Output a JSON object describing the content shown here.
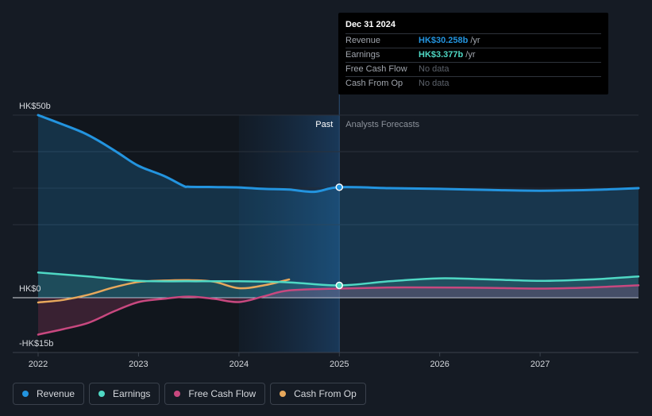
{
  "colors": {
    "revenue": "#2394df",
    "earnings": "#4fd8c4",
    "free_cash_flow": "#c8487f",
    "cash_from_op": "#e7a85c",
    "background": "#151b24"
  },
  "tooltip": {
    "date": "Dec 31 2024",
    "rows": [
      {
        "label": "Revenue",
        "value": "HK$30.258b",
        "unit": "/yr"
      },
      {
        "label": "Earnings",
        "value": "HK$3.377b",
        "unit": "/yr"
      },
      {
        "label": "Free Cash Flow",
        "value": "No data",
        "unit": ""
      },
      {
        "label": "Cash From Op",
        "value": "No data",
        "unit": ""
      }
    ]
  },
  "section_labels": {
    "past": "Past",
    "forecast": "Analysts Forecasts"
  },
  "legend": [
    {
      "label": "Revenue",
      "color_key": "revenue"
    },
    {
      "label": "Earnings",
      "color_key": "earnings"
    },
    {
      "label": "Free Cash Flow",
      "color_key": "free_cash_flow"
    },
    {
      "label": "Cash From Op",
      "color_key": "cash_from_op"
    }
  ],
  "chart_data": {
    "type": "line",
    "title": "",
    "xlabel": "",
    "ylabel": "",
    "unit": "HK$ billions",
    "xlim": [
      2022.0,
      2027.98
    ],
    "ylim": [
      -15,
      50
    ],
    "y_tick_labels": [
      {
        "value": 50,
        "label": "HK$50b"
      },
      {
        "value": 0,
        "label": "HK$0"
      },
      {
        "value": -15,
        "label": "-HK$15b"
      }
    ],
    "x_ticks": [
      2022,
      2023,
      2024,
      2025,
      2026,
      2027
    ],
    "x_tick_labels": [
      "2022",
      "2023",
      "2024",
      "2025",
      "2026",
      "2027"
    ],
    "past_forecast_divider": 2025.0,
    "highlight_band": [
      2024.0,
      2025.0
    ],
    "series": [
      {
        "name": "Revenue",
        "color_key": "revenue",
        "points": [
          [
            2022.0,
            50.0
          ],
          [
            2022.25,
            47.4
          ],
          [
            2022.45,
            45.2
          ],
          [
            2022.6,
            43.0
          ],
          [
            2022.8,
            39.6
          ],
          [
            2023.0,
            36.1
          ],
          [
            2023.25,
            33.4
          ],
          [
            2023.45,
            30.6
          ],
          [
            2023.5,
            30.4
          ],
          [
            2023.75,
            30.3
          ],
          [
            2024.0,
            30.2
          ],
          [
            2024.25,
            29.8
          ],
          [
            2024.5,
            29.6
          ],
          [
            2024.75,
            29.0
          ],
          [
            2025.0,
            30.258
          ],
          [
            2025.5,
            30.0
          ],
          [
            2026.0,
            29.8
          ],
          [
            2026.5,
            29.5
          ],
          [
            2027.0,
            29.3
          ],
          [
            2027.5,
            29.5
          ],
          [
            2027.98,
            30.0
          ]
        ],
        "markers": [
          [
            2025.0,
            30.258
          ]
        ]
      },
      {
        "name": "Earnings",
        "color_key": "earnings",
        "points": [
          [
            2022.0,
            6.9
          ],
          [
            2022.5,
            5.8
          ],
          [
            2023.0,
            4.6
          ],
          [
            2023.5,
            4.5
          ],
          [
            2024.0,
            4.5
          ],
          [
            2024.5,
            4.2
          ],
          [
            2025.0,
            3.377
          ],
          [
            2025.5,
            4.5
          ],
          [
            2026.0,
            5.3
          ],
          [
            2026.5,
            5.0
          ],
          [
            2027.0,
            4.6
          ],
          [
            2027.5,
            5.0
          ],
          [
            2027.98,
            5.8
          ]
        ],
        "markers": [
          [
            2025.0,
            3.377
          ]
        ]
      },
      {
        "name": "Free Cash Flow",
        "color_key": "free_cash_flow",
        "points": [
          [
            2022.0,
            -10.1
          ],
          [
            2022.25,
            -8.6
          ],
          [
            2022.5,
            -6.9
          ],
          [
            2022.75,
            -3.8
          ],
          [
            2023.0,
            -1.2
          ],
          [
            2023.25,
            -0.3
          ],
          [
            2023.5,
            0.3
          ],
          [
            2023.75,
            -0.3
          ],
          [
            2024.0,
            -1.2
          ],
          [
            2024.25,
            0.4
          ],
          [
            2024.5,
            2.0
          ],
          [
            2025.0,
            2.5
          ],
          [
            2025.5,
            2.8
          ],
          [
            2026.0,
            2.8
          ],
          [
            2026.5,
            2.7
          ],
          [
            2027.0,
            2.5
          ],
          [
            2027.5,
            2.8
          ],
          [
            2027.98,
            3.4
          ]
        ],
        "markers": []
      },
      {
        "name": "Cash From Op",
        "color_key": "cash_from_op",
        "points": [
          [
            2022.0,
            -1.3
          ],
          [
            2022.25,
            -0.6
          ],
          [
            2022.5,
            0.8
          ],
          [
            2022.75,
            2.8
          ],
          [
            2023.0,
            4.3
          ],
          [
            2023.25,
            4.7
          ],
          [
            2023.5,
            4.8
          ],
          [
            2023.75,
            4.4
          ],
          [
            2024.0,
            2.6
          ],
          [
            2024.25,
            3.4
          ],
          [
            2024.5,
            5.0
          ]
        ],
        "markers": []
      }
    ]
  }
}
